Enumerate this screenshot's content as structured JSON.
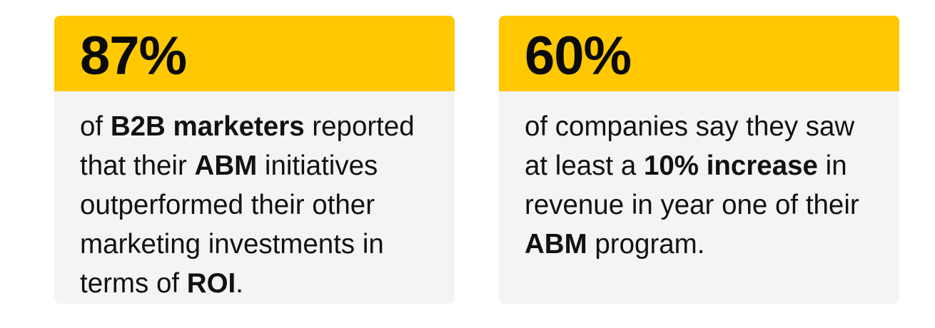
{
  "cards": [
    {
      "stat": "87%",
      "text": [
        {
          "t": "of ",
          "b": false
        },
        {
          "t": "B2B marketers",
          "b": true
        },
        {
          "t": " reported that their ",
          "b": false
        },
        {
          "t": "ABM",
          "b": true
        },
        {
          "t": " initiatives outperformed their other marketing investments in terms of ",
          "b": false
        },
        {
          "t": "ROI",
          "b": true
        },
        {
          "t": ".",
          "b": false
        }
      ]
    },
    {
      "stat": "60%",
      "text": [
        {
          "t": "of companies say they saw at least a ",
          "b": false
        },
        {
          "t": "10% increase",
          "b": true
        },
        {
          "t": " in revenue in year one of their ",
          "b": false
        },
        {
          "t": "ABM",
          "b": true
        },
        {
          "t": " program.",
          "b": false
        }
      ]
    }
  ],
  "colors": {
    "header_bg": "#ffc800",
    "card_bg": "#f4f4f4",
    "text": "#111111"
  }
}
